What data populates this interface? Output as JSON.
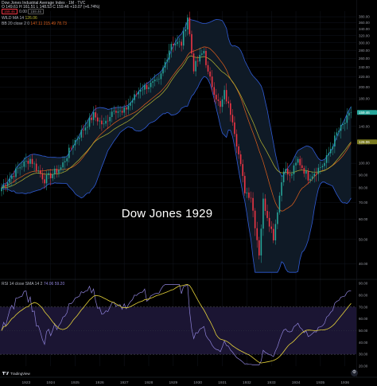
{
  "header": {
    "title": "Dow Jones Industrial Average Index · 1M · TVC",
    "price_chip_1": "159.46",
    "price_chip_2": "159.46",
    "price_change": "0.00",
    "ohlc_text": "O 149.61 H 161.51 L 148.53 C 159.46 +10.07 (+6.74%)",
    "wild_ma_label": "WILD MA 14",
    "wild_ma_value": "126.06",
    "bb_label": "BB 20 close 2 0",
    "bb_values": "147.11  215.49  78.73",
    "rsi_label": "RSI 14 close SMA 14 2",
    "rsi_values": "74.06  59.20"
  },
  "overlay_title": "Dow Jones 1929",
  "branding": "TradingView",
  "settings_icon": "gear-icon",
  "colors": {
    "background": "#000000",
    "up": "#26a69a",
    "down": "#f23645",
    "band_fill": "#0f1a26",
    "band_line": "#2f5bd6",
    "bb_basis": "#e0601c",
    "wild_ma": "#b7b531",
    "rsi_line": "#8e82d9",
    "rsi_sma": "#e6d33a",
    "rsi_band": "#1b1533"
  },
  "chart_data": {
    "type": "candlestick",
    "title": "Dow Jones Industrial Average Index · 1M · TVC",
    "timeframe": "1M",
    "x_ticks": [
      "1923",
      "1924",
      "1925",
      "1926",
      "1927",
      "1928",
      "1929",
      "1930",
      "1931",
      "1932",
      "1933",
      "1934",
      "1935",
      "1936"
    ],
    "price_axis": {
      "scale": "log",
      "ticks": [
        40,
        50,
        60,
        70,
        80,
        90,
        100,
        120,
        140,
        160,
        180,
        200,
        220,
        240,
        260,
        280,
        300,
        320,
        340,
        360,
        380
      ]
    },
    "rsi_axis": {
      "ylim": [
        20,
        90
      ],
      "ticks": [
        20,
        30,
        40,
        50,
        60,
        70,
        80,
        90
      ],
      "band": [
        30,
        70
      ]
    },
    "price_labels": {
      "last": "159.46",
      "ma": "126.06"
    },
    "anchors": [
      {
        "t": "1922-01",
        "close": 80
      },
      {
        "t": "1922-10",
        "close": 97
      },
      {
        "t": "1923-03",
        "close": 104
      },
      {
        "t": "1923-10",
        "close": 86
      },
      {
        "t": "1924-06",
        "close": 96
      },
      {
        "t": "1924-12",
        "close": 120
      },
      {
        "t": "1925-10",
        "close": 155
      },
      {
        "t": "1926-03",
        "close": 141
      },
      {
        "t": "1926-08",
        "close": 166
      },
      {
        "t": "1926-12",
        "close": 157
      },
      {
        "t": "1927-09",
        "close": 198
      },
      {
        "t": "1928-06",
        "close": 210
      },
      {
        "t": "1928-12",
        "close": 300
      },
      {
        "t": "1929-05",
        "close": 297
      },
      {
        "t": "1929-08",
        "close": 381
      },
      {
        "t": "1929-10",
        "close": 273
      },
      {
        "t": "1929-11",
        "close": 238
      },
      {
        "t": "1930-04",
        "close": 279
      },
      {
        "t": "1930-06",
        "close": 226
      },
      {
        "t": "1930-12",
        "close": 165
      },
      {
        "t": "1931-02",
        "close": 190
      },
      {
        "t": "1931-06",
        "close": 150
      },
      {
        "t": "1931-12",
        "close": 78
      },
      {
        "t": "1932-03",
        "close": 74
      },
      {
        "t": "1932-07",
        "close": 44
      },
      {
        "t": "1932-09",
        "close": 71
      },
      {
        "t": "1933-02",
        "close": 51
      },
      {
        "t": "1933-07",
        "close": 96
      },
      {
        "t": "1933-10",
        "close": 88
      },
      {
        "t": "1934-02",
        "close": 103
      },
      {
        "t": "1934-07",
        "close": 88
      },
      {
        "t": "1935-03",
        "close": 100
      },
      {
        "t": "1935-09",
        "close": 131
      },
      {
        "t": "1936-01",
        "close": 145
      },
      {
        "t": "1936-04",
        "close": 159
      }
    ]
  }
}
